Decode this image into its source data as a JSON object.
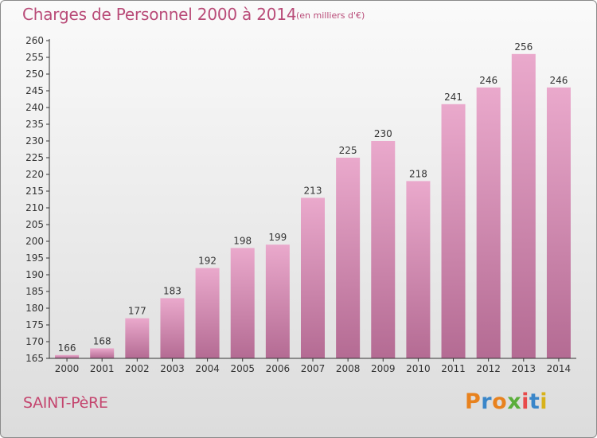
{
  "chart_data": {
    "type": "bar",
    "title": "Charges de Personnel 2000 à 2014",
    "subtitle": "(en milliers d'€)",
    "categories": [
      "2000",
      "2001",
      "2002",
      "2003",
      "2004",
      "2005",
      "2006",
      "2007",
      "2008",
      "2009",
      "2010",
      "2011",
      "2012",
      "2013",
      "2014"
    ],
    "values": [
      166,
      168,
      177,
      183,
      192,
      198,
      199,
      213,
      225,
      230,
      218,
      241,
      246,
      256,
      246
    ],
    "ylim": [
      165,
      260
    ],
    "yticks": [
      165,
      170,
      175,
      180,
      185,
      190,
      195,
      200,
      205,
      210,
      215,
      220,
      225,
      230,
      235,
      240,
      245,
      250,
      255,
      260
    ],
    "xlabel": "",
    "ylabel": "",
    "grid": false,
    "legend": "none"
  },
  "commune": "SAINT-PèRE",
  "logo": {
    "letters": [
      "P",
      "r",
      "o",
      "x",
      "i",
      "t",
      "i"
    ],
    "colors": [
      "#e8821e",
      "#3a86c9",
      "#e8821e",
      "#5aae3a",
      "#e84a4a",
      "#3a86c9",
      "#d8b21a"
    ]
  },
  "colors": {
    "bar_light": "#eaa9cc",
    "bar_dark": "#b46b93",
    "title": "#b94b78",
    "axis": "#333333",
    "labels": "#333333"
  }
}
